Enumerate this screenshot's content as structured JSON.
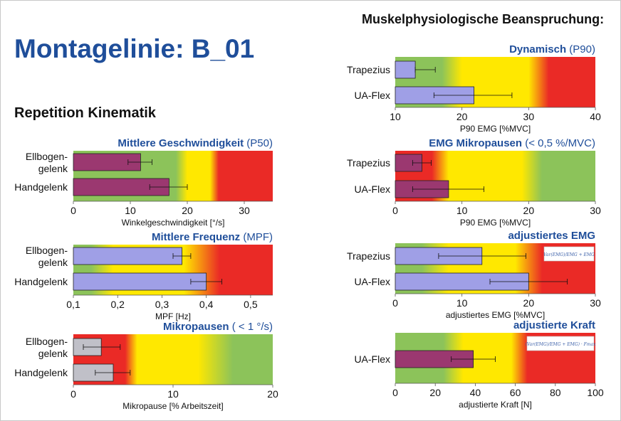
{
  "page": {
    "title": "Montagelinie: B_01",
    "section_left": "Repetition Kinematik",
    "section_right": "Muskelphysiologische Beanspruchung:"
  },
  "colors": {
    "green": "#8cc35a",
    "yellow": "#ffe800",
    "red": "#ea2a26",
    "purple_bar": "#9b3870",
    "blue_bar": "#9f9fe6",
    "gray_bar": "#c0c0c8",
    "title_blue": "#1f4e9a"
  },
  "chart_data": [
    {
      "id": "geschw",
      "type": "bar",
      "orientation": "horizontal",
      "title": "Mittlere Geschwindigkeit",
      "subtitle": "(P50)",
      "categories": [
        [
          "Ellbogen-",
          "gelenk"
        ],
        [
          "Handgelenk"
        ]
      ],
      "values": [
        11.8,
        16.8
      ],
      "errors": [
        [
          9.6,
          13.8
        ],
        [
          13.4,
          20
        ]
      ],
      "bar_color": "#9b3870",
      "xlim": [
        0,
        35
      ],
      "ticks": [
        0,
        10,
        20,
        30
      ],
      "tick_labels": [
        "0",
        "10",
        "20",
        "30"
      ],
      "xlabel": "Winkelgeschwindigkeit [°/s]",
      "zones": [
        {
          "color": "green",
          "to": 18
        },
        {
          "color": "yellow",
          "from": 20,
          "to": 24
        },
        {
          "color": "red",
          "from": 25.5
        }
      ]
    },
    {
      "id": "frequenz",
      "type": "bar",
      "orientation": "horizontal",
      "title": "Mittlere Frequenz",
      "subtitle": "(MPF)",
      "categories": [
        [
          "Ellbogen-",
          "gelenk"
        ],
        [
          "Handgelenk"
        ]
      ],
      "values": [
        0.345,
        0.4
      ],
      "errors": [
        [
          0.325,
          0.365
        ],
        [
          0.365,
          0.435
        ]
      ],
      "bar_color": "#9f9fe6",
      "xlim": [
        0.1,
        0.55
      ],
      "ticks": [
        0.1,
        0.2,
        0.3,
        0.4,
        0.5
      ],
      "tick_labels": [
        "0,1",
        "0,2",
        "0,3",
        "0,4",
        "0,5"
      ],
      "xlabel": "MPF [Hz]",
      "zones": [
        {
          "color": "green",
          "to": 0.14
        },
        {
          "color": "yellow",
          "from": 0.19,
          "to": 0.35
        },
        {
          "color": "red",
          "from": 0.43
        }
      ]
    },
    {
      "id": "mikropausen_kin",
      "type": "bar",
      "orientation": "horizontal",
      "title": "Mikropausen",
      "subtitle": "(   < 1 °/s)",
      "categories": [
        [
          "Ellbogen-",
          "gelenk"
        ],
        [
          "Handgelenk"
        ]
      ],
      "values": [
        2.8,
        4
      ],
      "errors": [
        [
          1,
          4.7
        ],
        [
          2.2,
          5.7
        ]
      ],
      "bar_color": "#c0c0c8",
      "xlim": [
        0,
        20
      ],
      "ticks": [
        0,
        10,
        20
      ],
      "tick_labels": [
        "0",
        "10",
        "20"
      ],
      "xlabel": "Mikropause [% Arbeitszeit]",
      "zones": [
        {
          "color": "red",
          "to": 5.2
        },
        {
          "color": "yellow",
          "from": 6.4,
          "to": 12.5
        },
        {
          "color": "green",
          "from": 16
        }
      ]
    },
    {
      "id": "dynamisch",
      "type": "bar",
      "orientation": "horizontal",
      "title": "Dynamisch",
      "subtitle": "(P90)",
      "categories": [
        [
          "Trapezius"
        ],
        [
          "UA-Flex"
        ]
      ],
      "values": [
        13,
        21.8
      ],
      "errors": [
        [
          13,
          16
        ],
        [
          15.8,
          27.5
        ]
      ],
      "bar_color": "#9f9fe6",
      "xlim": [
        10,
        40
      ],
      "ticks": [
        10,
        20,
        30,
        40
      ],
      "tick_labels": [
        "10",
        "20",
        "30",
        "40"
      ],
      "xlabel": "P90 EMG [%MVC]",
      "zones": [
        {
          "color": "green",
          "to": 17
        },
        {
          "color": "yellow",
          "from": 20,
          "to": 30
        },
        {
          "color": "red",
          "from": 33
        }
      ]
    },
    {
      "id": "emg_mikro",
      "type": "bar",
      "orientation": "horizontal",
      "title": "EMG Mikropausen",
      "subtitle": "(< 0,5 %/MVC)",
      "categories": [
        [
          "Trapezius"
        ],
        [
          "UA-Flex"
        ]
      ],
      "values": [
        4,
        8
      ],
      "errors": [
        [
          2.6,
          5.4
        ],
        [
          2.6,
          13.3
        ]
      ],
      "bar_color": "#9b3870",
      "xlim": [
        0,
        30
      ],
      "ticks": [
        0,
        10,
        20,
        30
      ],
      "tick_labels": [
        "0",
        "10",
        "20",
        "30"
      ],
      "xlabel": "P90 EMG [%MVC]",
      "zones": [
        {
          "color": "red",
          "to": 5.5
        },
        {
          "color": "yellow",
          "from": 8,
          "to": 19
        },
        {
          "color": "green",
          "from": 22
        }
      ]
    },
    {
      "id": "adj_emg",
      "type": "bar",
      "orientation": "horizontal",
      "title": "adjustiertes EMG",
      "subtitle": "",
      "categories": [
        [
          "Trapezius"
        ],
        [
          "UA-Flex"
        ]
      ],
      "values": [
        13,
        20
      ],
      "errors": [
        [
          6.5,
          19.6
        ],
        [
          14.2,
          25.8
        ]
      ],
      "bar_color": "#9f9fe6",
      "xlim": [
        0,
        30
      ],
      "ticks": [
        0,
        10,
        20,
        30
      ],
      "tick_labels": [
        "0",
        "10",
        "20",
        "30"
      ],
      "xlabel": "adjustiertes EMG [%MVC]",
      "zones": [
        {
          "color": "green",
          "to": 4
        },
        {
          "color": "yellow",
          "from": 8,
          "to": 18
        },
        {
          "color": "red",
          "from": 22
        }
      ],
      "formula": "Var(EMG)/EMG + EMG"
    },
    {
      "id": "adj_kraft",
      "type": "bar",
      "orientation": "horizontal",
      "title": "adjustierte Kraft",
      "subtitle": "",
      "categories": [
        [
          "UA-Flex"
        ]
      ],
      "values": [
        39
      ],
      "errors": [
        [
          28,
          50
        ]
      ],
      "bar_color": "#9b3870",
      "xlim": [
        0,
        100
      ],
      "ticks": [
        0,
        20,
        40,
        60,
        80,
        100
      ],
      "tick_labels": [
        "0",
        "20",
        "40",
        "60",
        "80",
        "100"
      ],
      "xlabel": "adjustierte Kraft [N]",
      "zones": [
        {
          "color": "green",
          "to": 24
        },
        {
          "color": "yellow",
          "from": 34,
          "to": 58
        },
        {
          "color": "red",
          "from": 66
        }
      ],
      "formula": "(Var(EMG)/EMG + EMG) · Fmax"
    }
  ]
}
